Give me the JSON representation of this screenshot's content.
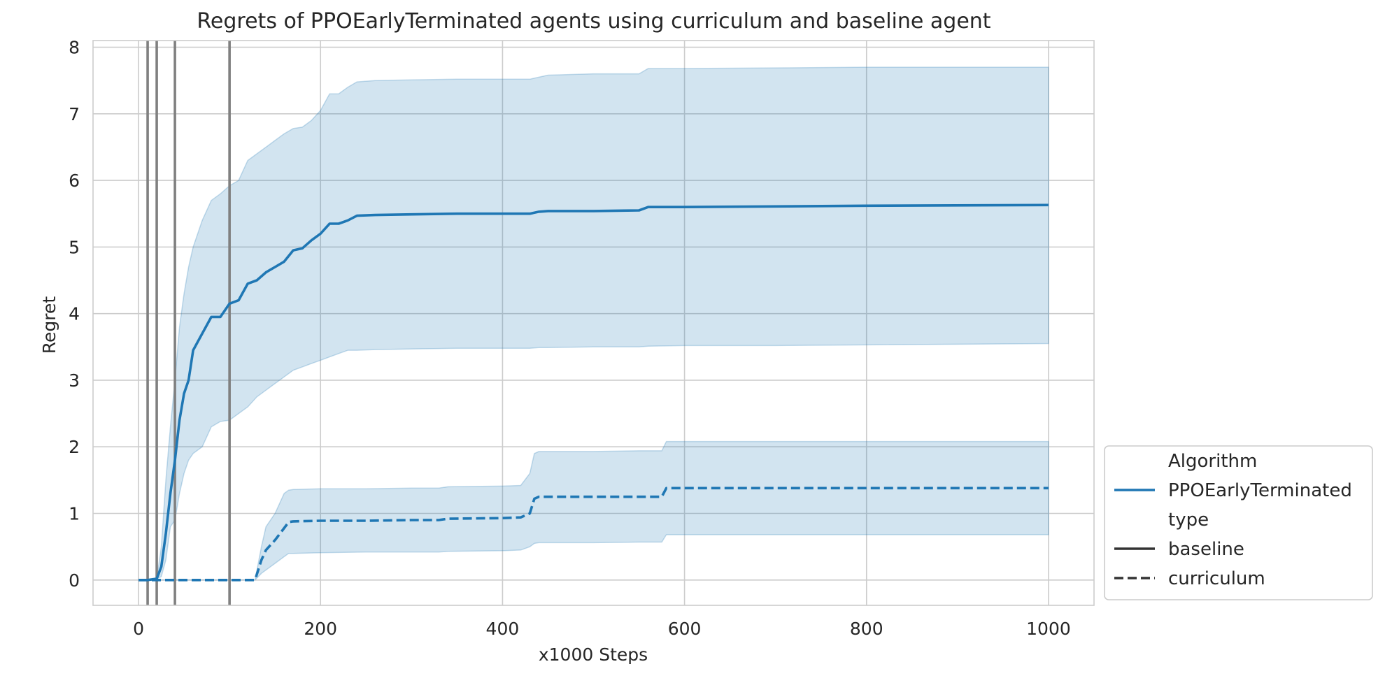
{
  "chart_data": {
    "type": "line",
    "title": "Regrets of PPOEarlyTerminated agents using curriculum and baseline agent",
    "xlabel": "x1000 Steps",
    "ylabel": "Regret",
    "xlim": [
      -50,
      1050
    ],
    "ylim": [
      -0.38,
      8.1
    ],
    "xticks": [
      0,
      200,
      400,
      600,
      800,
      1000
    ],
    "yticks": [
      0,
      1,
      2,
      3,
      4,
      5,
      6,
      7,
      8
    ],
    "grid": true,
    "legend_position": "lower-right-outside",
    "vertical_lines": [
      10,
      20,
      40,
      100
    ],
    "vertical_line_color": "#808080",
    "line_color": "#1f77b4",
    "band_color": "#1f77b4",
    "legend": {
      "entries": [
        {
          "label": "Algorithm",
          "kind": "header"
        },
        {
          "label": "PPOEarlyTerminated",
          "kind": "color",
          "color": "#1f77b4"
        },
        {
          "label": "type",
          "kind": "header"
        },
        {
          "label": "baseline",
          "kind": "solid",
          "color": "#333333"
        },
        {
          "label": "curriculum",
          "kind": "dashed",
          "color": "#333333"
        }
      ]
    },
    "series": [
      {
        "name": "baseline",
        "style": "solid",
        "x": [
          0,
          10,
          20,
          25,
          30,
          35,
          40,
          45,
          50,
          55,
          60,
          70,
          80,
          90,
          100,
          110,
          120,
          130,
          140,
          150,
          160,
          170,
          180,
          190,
          200,
          210,
          220,
          230,
          240,
          260,
          300,
          350,
          400,
          430,
          440,
          450,
          500,
          550,
          560,
          600,
          700,
          800,
          1000
        ],
        "y": [
          0,
          0,
          0.02,
          0.2,
          0.7,
          1.3,
          1.8,
          2.4,
          2.8,
          3.0,
          3.45,
          3.7,
          3.95,
          3.95,
          4.15,
          4.2,
          4.45,
          4.5,
          4.62,
          4.7,
          4.78,
          4.95,
          4.98,
          5.1,
          5.2,
          5.35,
          5.35,
          5.4,
          5.47,
          5.48,
          5.49,
          5.5,
          5.5,
          5.5,
          5.53,
          5.54,
          5.54,
          5.55,
          5.6,
          5.6,
          5.61,
          5.62,
          5.63
        ],
        "lower": [
          0,
          0,
          0.02,
          0.05,
          0.3,
          0.8,
          0.9,
          1.3,
          1.6,
          1.8,
          1.9,
          2.0,
          2.3,
          2.38,
          2.4,
          2.5,
          2.6,
          2.75,
          2.85,
          2.95,
          3.05,
          3.15,
          3.2,
          3.25,
          3.3,
          3.35,
          3.4,
          3.45,
          3.45,
          3.46,
          3.47,
          3.48,
          3.48,
          3.48,
          3.49,
          3.49,
          3.5,
          3.5,
          3.51,
          3.52,
          3.52,
          3.53,
          3.55
        ],
        "upper": [
          0,
          0,
          0.02,
          0.5,
          1.5,
          2.3,
          3.0,
          3.8,
          4.3,
          4.7,
          5.0,
          5.4,
          5.7,
          5.8,
          5.92,
          6.0,
          6.3,
          6.4,
          6.5,
          6.6,
          6.7,
          6.78,
          6.8,
          6.9,
          7.05,
          7.3,
          7.3,
          7.4,
          7.48,
          7.5,
          7.51,
          7.52,
          7.52,
          7.52,
          7.55,
          7.58,
          7.6,
          7.6,
          7.68,
          7.68,
          7.69,
          7.7,
          7.7
        ]
      },
      {
        "name": "curriculum",
        "style": "dashed",
        "x": [
          0,
          50,
          100,
          128,
          135,
          140,
          150,
          160,
          165,
          170,
          200,
          250,
          300,
          330,
          340,
          400,
          420,
          430,
          435,
          440,
          500,
          550,
          575,
          580,
          600,
          800,
          1000
        ],
        "y": [
          0,
          0,
          0,
          0,
          0.3,
          0.45,
          0.6,
          0.78,
          0.87,
          0.88,
          0.89,
          0.89,
          0.9,
          0.9,
          0.92,
          0.93,
          0.94,
          1.0,
          1.22,
          1.25,
          1.25,
          1.25,
          1.25,
          1.38,
          1.38,
          1.38,
          1.38
        ],
        "lower": [
          0,
          0,
          0,
          0,
          0.1,
          0.15,
          0.25,
          0.35,
          0.4,
          0.4,
          0.41,
          0.42,
          0.42,
          0.42,
          0.43,
          0.44,
          0.45,
          0.5,
          0.55,
          0.56,
          0.56,
          0.57,
          0.57,
          0.68,
          0.68,
          0.68,
          0.68
        ],
        "upper": [
          0,
          0,
          0,
          0,
          0.5,
          0.8,
          1.0,
          1.3,
          1.35,
          1.36,
          1.37,
          1.37,
          1.38,
          1.38,
          1.4,
          1.41,
          1.42,
          1.6,
          1.9,
          1.93,
          1.93,
          1.94,
          1.94,
          2.08,
          2.08,
          2.08,
          2.08
        ]
      }
    ]
  }
}
